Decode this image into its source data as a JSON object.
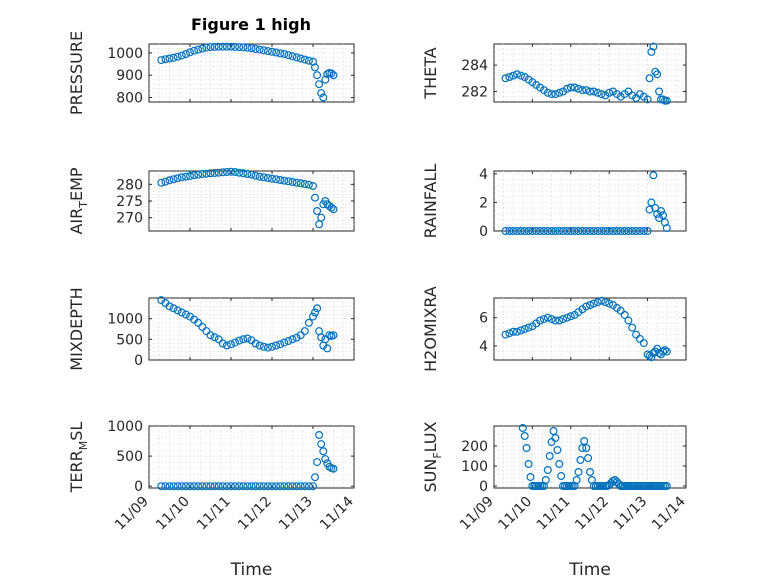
{
  "figure": {
    "title": "Figure 1 high",
    "xlabel": "Time",
    "x_tick_labels": [
      "11/09",
      "11/10",
      "11/11",
      "11/12",
      "11/13",
      "11/14"
    ],
    "marker_color": "#0072BD",
    "marker": "open-circle"
  },
  "chart_data": [
    {
      "type": "scatter",
      "ylabel": "PRESSURE",
      "ylabel_parts": [
        "PRESSURE",
        ""
      ],
      "xlim": [
        "11/09",
        "11/14"
      ],
      "xlim_days": [
        0,
        5
      ],
      "ylim": [
        780,
        1040
      ],
      "yticks": [
        800,
        900,
        1000
      ],
      "ytick_labels": [
        "800",
        "900",
        "1000"
      ],
      "grid": true,
      "x": [
        0.3,
        0.4,
        0.5,
        0.6,
        0.7,
        0.8,
        0.9,
        1.0,
        1.1,
        1.2,
        1.3,
        1.4,
        1.5,
        1.6,
        1.7,
        1.8,
        1.9,
        2.0,
        2.1,
        2.2,
        2.3,
        2.4,
        2.5,
        2.6,
        2.7,
        2.8,
        2.9,
        3.0,
        3.1,
        3.2,
        3.3,
        3.4,
        3.5,
        3.6,
        3.7,
        3.8,
        3.9,
        4.0,
        4.05,
        4.1,
        4.15,
        4.2,
        4.25,
        4.3,
        4.35,
        4.4,
        4.45,
        4.5
      ],
      "y": [
        968,
        972,
        975,
        978,
        983,
        988,
        995,
        1003,
        1010,
        1015,
        1020,
        1024,
        1026,
        1027,
        1028,
        1028,
        1028,
        1028,
        1027,
        1026,
        1025,
        1023,
        1021,
        1018,
        1015,
        1012,
        1008,
        1005,
        1002,
        998,
        995,
        990,
        985,
        980,
        975,
        970,
        965,
        960,
        935,
        900,
        860,
        820,
        800,
        880,
        905,
        910,
        908,
        900
      ]
    },
    {
      "type": "scatter",
      "ylabel": "THETA",
      "ylabel_parts": [
        "THETA",
        ""
      ],
      "xlim": [
        "11/09",
        "11/14"
      ],
      "xlim_days": [
        0,
        5
      ],
      "ylim": [
        281.2,
        285.6
      ],
      "yticks": [
        282,
        284
      ],
      "ytick_labels": [
        "282",
        "284"
      ],
      "grid": true,
      "x": [
        0.3,
        0.4,
        0.5,
        0.6,
        0.7,
        0.8,
        0.9,
        1.0,
        1.1,
        1.2,
        1.3,
        1.4,
        1.5,
        1.6,
        1.7,
        1.8,
        1.9,
        2.0,
        2.1,
        2.2,
        2.3,
        2.4,
        2.5,
        2.6,
        2.7,
        2.8,
        2.9,
        3.0,
        3.1,
        3.2,
        3.3,
        3.4,
        3.5,
        3.6,
        3.7,
        3.8,
        3.9,
        4.0,
        4.05,
        4.1,
        4.15,
        4.2,
        4.25,
        4.3,
        4.35,
        4.4,
        4.45,
        4.5
      ],
      "y": [
        283.0,
        283.1,
        283.2,
        283.3,
        283.2,
        283.1,
        282.9,
        282.7,
        282.5,
        282.3,
        282.1,
        281.9,
        281.8,
        281.8,
        281.9,
        282.0,
        282.2,
        282.3,
        282.3,
        282.2,
        282.1,
        282.1,
        282.0,
        282.0,
        281.9,
        281.8,
        281.7,
        281.9,
        282.0,
        281.8,
        281.6,
        281.8,
        282.0,
        281.7,
        281.5,
        281.8,
        281.6,
        281.4,
        283.0,
        285.0,
        285.4,
        283.5,
        283.3,
        282.0,
        281.4,
        281.4,
        281.3,
        281.3
      ]
    },
    {
      "type": "scatter",
      "ylabel": "AIR_TEMP",
      "ylabel_parts": [
        "AIR",
        "T",
        "EMP"
      ],
      "xlim": [
        "11/09",
        "11/14"
      ],
      "xlim_days": [
        0,
        5
      ],
      "ylim": [
        266,
        284
      ],
      "yticks": [
        270,
        275,
        280
      ],
      "ytick_labels": [
        "270",
        "275",
        "280"
      ],
      "grid": true,
      "x": [
        0.3,
        0.4,
        0.5,
        0.6,
        0.7,
        0.8,
        0.9,
        1.0,
        1.1,
        1.2,
        1.3,
        1.4,
        1.5,
        1.6,
        1.7,
        1.8,
        1.9,
        2.0,
        2.1,
        2.2,
        2.3,
        2.4,
        2.5,
        2.6,
        2.7,
        2.8,
        2.9,
        3.0,
        3.1,
        3.2,
        3.3,
        3.4,
        3.5,
        3.6,
        3.7,
        3.8,
        3.9,
        4.0,
        4.05,
        4.1,
        4.15,
        4.2,
        4.25,
        4.3,
        4.35,
        4.4,
        4.45,
        4.5
      ],
      "y": [
        280.5,
        280.8,
        281.2,
        281.5,
        281.8,
        282.1,
        282.3,
        282.5,
        282.7,
        282.9,
        283.1,
        283.2,
        283.3,
        283.4,
        283.5,
        283.6,
        283.7,
        283.8,
        283.7,
        283.5,
        283.3,
        283.1,
        282.9,
        282.6,
        282.3,
        282.1,
        281.9,
        281.7,
        281.5,
        281.3,
        281.1,
        280.9,
        280.7,
        280.5,
        280.3,
        280.1,
        279.9,
        279.5,
        276,
        272,
        268,
        270,
        274,
        275,
        274,
        273.5,
        273,
        272.5
      ]
    },
    {
      "type": "scatter",
      "ylabel": "RAINFALL",
      "ylabel_parts": [
        "RAINFALL",
        ""
      ],
      "xlim": [
        "11/09",
        "11/14"
      ],
      "xlim_days": [
        0,
        5
      ],
      "ylim": [
        0,
        4.2
      ],
      "yticks": [
        0,
        2,
        4
      ],
      "ytick_labels": [
        "0",
        "2",
        "4"
      ],
      "grid": true,
      "x": [
        0.3,
        0.4,
        0.5,
        0.6,
        0.7,
        0.8,
        0.9,
        1.0,
        1.1,
        1.2,
        1.3,
        1.4,
        1.5,
        1.6,
        1.7,
        1.8,
        1.9,
        2.0,
        2.1,
        2.2,
        2.3,
        2.4,
        2.5,
        2.6,
        2.7,
        2.8,
        2.9,
        3.0,
        3.1,
        3.2,
        3.3,
        3.4,
        3.5,
        3.6,
        3.7,
        3.8,
        3.9,
        4.0,
        4.05,
        4.1,
        4.15,
        4.2,
        4.25,
        4.3,
        4.35,
        4.4,
        4.45,
        4.5
      ],
      "y": [
        0,
        0,
        0,
        0,
        0,
        0,
        0,
        0,
        0,
        0,
        0,
        0,
        0,
        0,
        0,
        0,
        0,
        0,
        0,
        0,
        0,
        0,
        0,
        0,
        0,
        0,
        0,
        0,
        0,
        0,
        0,
        0,
        0,
        0,
        0,
        0,
        0,
        0,
        1.5,
        2.0,
        3.9,
        1.6,
        1.2,
        0.9,
        1.4,
        1.1,
        0.6,
        0.2
      ]
    },
    {
      "type": "scatter",
      "ylabel": "MIXDEPTH",
      "ylabel_parts": [
        "MIXDEPTH",
        ""
      ],
      "xlim": [
        "11/09",
        "11/14"
      ],
      "xlim_days": [
        0,
        5
      ],
      "ylim": [
        0,
        1500
      ],
      "yticks": [
        0,
        500,
        1000
      ],
      "ytick_labels": [
        "0",
        "500",
        "1000"
      ],
      "grid": true,
      "x": [
        0.3,
        0.4,
        0.5,
        0.6,
        0.7,
        0.8,
        0.9,
        1.0,
        1.1,
        1.2,
        1.3,
        1.4,
        1.5,
        1.6,
        1.7,
        1.8,
        1.9,
        2.0,
        2.1,
        2.2,
        2.3,
        2.4,
        2.5,
        2.6,
        2.7,
        2.8,
        2.9,
        3.0,
        3.1,
        3.2,
        3.3,
        3.4,
        3.5,
        3.6,
        3.7,
        3.8,
        3.9,
        4.0,
        4.05,
        4.1,
        4.15,
        4.2,
        4.25,
        4.3,
        4.35,
        4.4,
        4.45,
        4.5
      ],
      "y": [
        1450,
        1380,
        1300,
        1250,
        1200,
        1150,
        1100,
        1050,
        980,
        900,
        800,
        700,
        600,
        550,
        500,
        400,
        350,
        380,
        420,
        470,
        500,
        520,
        480,
        400,
        350,
        320,
        300,
        320,
        350,
        380,
        420,
        460,
        500,
        540,
        600,
        700,
        900,
        1050,
        1150,
        1250,
        700,
        550,
        350,
        500,
        280,
        600,
        580,
        600
      ]
    },
    {
      "type": "scatter",
      "ylabel": "H2OMIXRA",
      "ylabel_parts": [
        "H2OMIXRA",
        ""
      ],
      "xlim": [
        "11/09",
        "11/14"
      ],
      "xlim_days": [
        0,
        5
      ],
      "ylim": [
        3,
        7.4
      ],
      "yticks": [
        4,
        6
      ],
      "ytick_labels": [
        "4",
        "6"
      ],
      "grid": true,
      "x": [
        0.3,
        0.4,
        0.5,
        0.6,
        0.7,
        0.8,
        0.9,
        1.0,
        1.1,
        1.2,
        1.3,
        1.4,
        1.5,
        1.6,
        1.7,
        1.8,
        1.9,
        2.0,
        2.1,
        2.2,
        2.3,
        2.4,
        2.5,
        2.6,
        2.7,
        2.8,
        2.9,
        3.0,
        3.1,
        3.2,
        3.3,
        3.4,
        3.5,
        3.6,
        3.7,
        3.8,
        3.9,
        4.0,
        4.05,
        4.1,
        4.15,
        4.2,
        4.25,
        4.3,
        4.35,
        4.4,
        4.45,
        4.5
      ],
      "y": [
        4.8,
        4.9,
        5.0,
        5.0,
        5.1,
        5.2,
        5.3,
        5.4,
        5.6,
        5.8,
        5.9,
        6.0,
        5.9,
        5.8,
        5.8,
        5.9,
        6.0,
        6.1,
        6.2,
        6.4,
        6.6,
        6.8,
        6.9,
        7.0,
        7.1,
        7.2,
        7.1,
        7.0,
        6.9,
        6.7,
        6.5,
        6.2,
        5.8,
        5.3,
        4.8,
        4.5,
        4.2,
        3.4,
        3.3,
        3.2,
        3.5,
        3.6,
        3.8,
        3.5,
        3.4,
        3.6,
        3.7,
        3.6
      ]
    },
    {
      "type": "scatter",
      "ylabel": "TERR_MSL",
      "ylabel_parts": [
        "TERR",
        "M",
        "SL"
      ],
      "xlim": [
        "11/09",
        "11/14"
      ],
      "xlim_days": [
        0,
        5
      ],
      "ylim": [
        -30,
        1000
      ],
      "yticks": [
        0,
        500,
        1000
      ],
      "ytick_labels": [
        "0",
        "500",
        "1000"
      ],
      "grid": true,
      "x": [
        0.3,
        0.4,
        0.5,
        0.6,
        0.7,
        0.8,
        0.9,
        1.0,
        1.1,
        1.2,
        1.3,
        1.4,
        1.5,
        1.6,
        1.7,
        1.8,
        1.9,
        2.0,
        2.1,
        2.2,
        2.3,
        2.4,
        2.5,
        2.6,
        2.7,
        2.8,
        2.9,
        3.0,
        3.1,
        3.2,
        3.3,
        3.4,
        3.5,
        3.6,
        3.7,
        3.8,
        3.9,
        4.0,
        4.05,
        4.1,
        4.15,
        4.2,
        4.25,
        4.3,
        4.35,
        4.4,
        4.45,
        4.5
      ],
      "y": [
        0,
        0,
        0,
        0,
        0,
        0,
        0,
        0,
        0,
        0,
        0,
        0,
        0,
        0,
        0,
        0,
        0,
        0,
        0,
        0,
        0,
        0,
        0,
        0,
        0,
        0,
        0,
        0,
        0,
        0,
        0,
        0,
        0,
        0,
        0,
        0,
        0,
        0,
        150,
        400,
        850,
        700,
        580,
        450,
        380,
        320,
        300,
        290
      ]
    },
    {
      "type": "scatter",
      "ylabel": "SUN_FLUX",
      "ylabel_parts": [
        "SUN",
        "F",
        "LUX"
      ],
      "xlim": [
        "11/09",
        "11/14"
      ],
      "xlim_days": [
        0,
        5
      ],
      "ylim": [
        -10,
        300
      ],
      "yticks": [
        0,
        100,
        200
      ],
      "ytick_labels": [
        "0",
        "100",
        "200"
      ],
      "grid": true,
      "x": [
        0.75,
        0.8,
        0.85,
        0.9,
        0.95,
        1.0,
        1.05,
        1.1,
        1.15,
        1.2,
        1.25,
        1.3,
        1.35,
        1.4,
        1.45,
        1.5,
        1.55,
        1.6,
        1.65,
        1.7,
        1.75,
        1.8,
        1.85,
        1.9,
        1.95,
        2.0,
        2.05,
        2.1,
        2.15,
        2.2,
        2.25,
        2.3,
        2.35,
        2.4,
        2.45,
        2.5,
        2.55,
        2.6,
        2.65,
        2.7,
        2.75,
        2.8,
        2.85,
        2.9,
        2.95,
        3.0,
        3.05,
        3.1,
        3.15,
        3.2,
        3.25,
        3.3,
        3.35,
        3.4,
        3.45,
        3.5,
        3.55,
        3.6,
        3.65,
        3.7,
        3.75,
        3.8,
        3.85,
        3.9,
        3.95,
        4.0,
        4.05,
        4.1,
        4.15,
        4.2,
        4.25,
        4.3,
        4.35,
        4.4,
        4.45,
        4.5
      ],
      "y": [
        290,
        250,
        190,
        110,
        45,
        0,
        0,
        0,
        0,
        0,
        0,
        0,
        30,
        80,
        150,
        220,
        275,
        240,
        180,
        110,
        50,
        0,
        0,
        0,
        0,
        0,
        0,
        0,
        30,
        70,
        130,
        190,
        225,
        190,
        140,
        70,
        30,
        0,
        0,
        0,
        0,
        0,
        0,
        0,
        0,
        5,
        15,
        25,
        30,
        20,
        10,
        0,
        0,
        0,
        0,
        0,
        0,
        0,
        0,
        0,
        0,
        0,
        0,
        0,
        0,
        0,
        0,
        0,
        0,
        0,
        0,
        0,
        0,
        0,
        0,
        0
      ]
    }
  ]
}
